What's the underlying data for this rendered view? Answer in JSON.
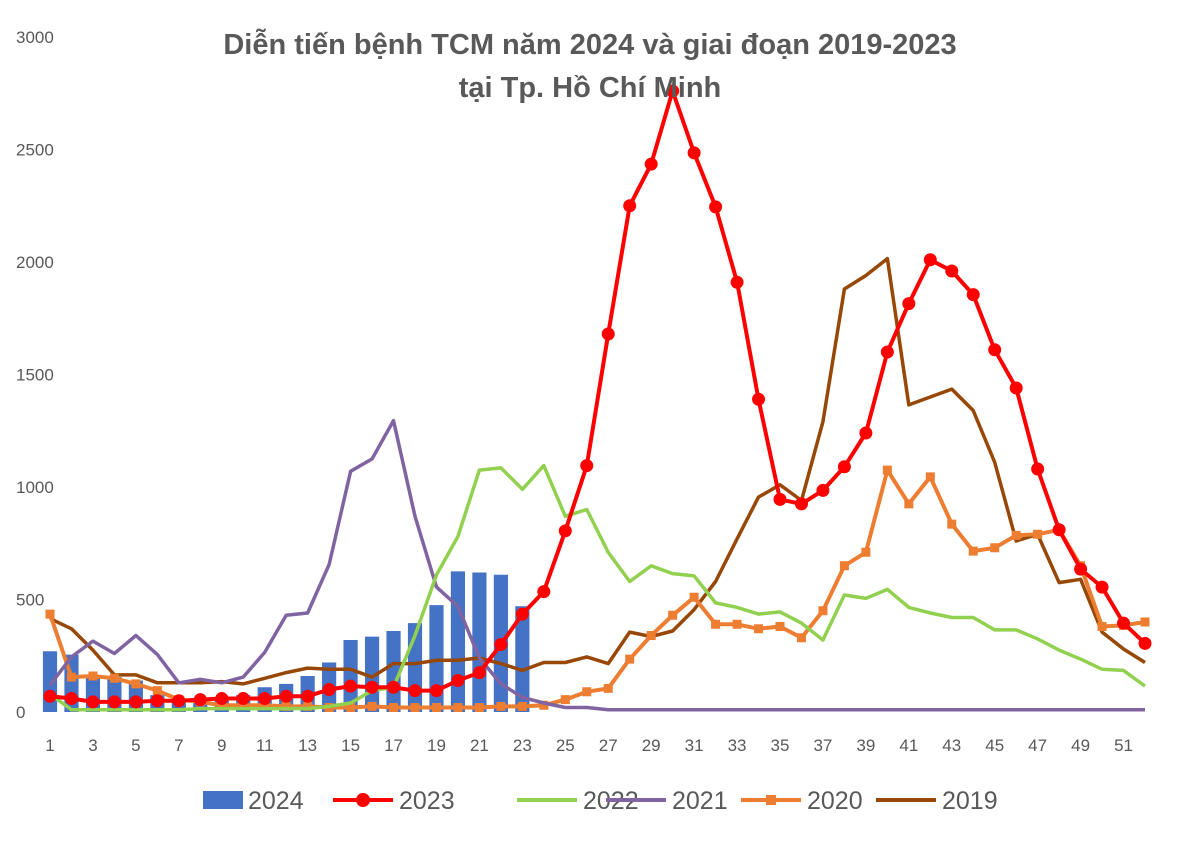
{
  "chart_data": {
    "type": "bar+line",
    "title": "Diễn tiến bệnh TCM năm 2024 và giai đoạn 2019-2023",
    "subtitle": "tại Tp. Hồ Chí Minh",
    "xlabel": "",
    "ylabel": "",
    "ylim": [
      0,
      3000
    ],
    "yticks": [
      "0",
      "500",
      "1000",
      "1500",
      "2000",
      "2500",
      "3000"
    ],
    "xticks": [
      "1",
      "3",
      "5",
      "7",
      "9",
      "11",
      "13",
      "15",
      "17",
      "19",
      "21",
      "23",
      "25",
      "27",
      "29",
      "31",
      "33",
      "35",
      "37",
      "39",
      "41",
      "43",
      "45",
      "47",
      "49",
      "51"
    ],
    "weeks": [
      1,
      2,
      3,
      4,
      5,
      6,
      7,
      8,
      9,
      10,
      11,
      12,
      13,
      14,
      15,
      16,
      17,
      18,
      19,
      20,
      21,
      22,
      23,
      24,
      25,
      26,
      27,
      28,
      29,
      30,
      31,
      32,
      33,
      34,
      35,
      36,
      37,
      38,
      39,
      40,
      41,
      42,
      43,
      44,
      45,
      46,
      47,
      48,
      49,
      50,
      51,
      52
    ],
    "legend_position": "bottom",
    "series": [
      {
        "name": "2024",
        "kind": "bar",
        "color": "#4472C4",
        "values": [
          270,
          255,
          165,
          155,
          140,
          75,
          55,
          45,
          55,
          75,
          110,
          125,
          160,
          220,
          320,
          335,
          360,
          395,
          475,
          625,
          620,
          610,
          470
        ]
      },
      {
        "name": "2023",
        "kind": "line",
        "marker": "circle",
        "color": "#FF0000",
        "values": [
          70,
          60,
          45,
          45,
          45,
          50,
          50,
          55,
          60,
          60,
          60,
          70,
          70,
          100,
          115,
          110,
          110,
          95,
          95,
          140,
          175,
          300,
          435,
          535,
          805,
          1095,
          1680,
          2250,
          2435,
          2760,
          2485,
          2245,
          1910,
          1390,
          945,
          925,
          985,
          1090,
          1240,
          1600,
          1815,
          2010,
          1960,
          1855,
          1610,
          1440,
          1080,
          810,
          635,
          555,
          395,
          305
        ]
      },
      {
        "name": "2022",
        "kind": "line",
        "color": "#92D050",
        "values": [
          80,
          10,
          10,
          10,
          10,
          10,
          10,
          15,
          15,
          15,
          15,
          15,
          15,
          25,
          40,
          95,
          110,
          340,
          610,
          780,
          1075,
          1085,
          990,
          1095,
          870,
          900,
          710,
          580,
          650,
          615,
          605,
          485,
          465,
          435,
          445,
          395,
          320,
          520,
          505,
          545,
          465,
          440,
          420,
          420,
          365,
          365,
          325,
          275,
          235,
          190,
          185,
          115
        ]
      },
      {
        "name": "2021",
        "kind": "line",
        "color": "#8064A2",
        "values": [
          120,
          245,
          315,
          260,
          340,
          255,
          130,
          145,
          130,
          155,
          265,
          430,
          440,
          655,
          1070,
          1125,
          1295,
          870,
          555,
          470,
          240,
          125,
          65,
          40,
          20,
          20,
          10,
          10,
          10,
          10,
          10,
          10,
          10,
          10,
          10,
          10,
          10,
          10,
          10,
          10,
          10,
          10,
          10,
          10,
          10,
          10,
          10,
          10,
          10,
          10,
          10,
          10
        ]
      },
      {
        "name": "2020",
        "kind": "line",
        "marker": "square",
        "color": "#ED7D31",
        "values": [
          435,
          155,
          160,
          150,
          125,
          95,
          55,
          45,
          30,
          30,
          30,
          25,
          25,
          20,
          20,
          25,
          20,
          20,
          20,
          20,
          20,
          25,
          25,
          30,
          55,
          90,
          105,
          235,
          340,
          430,
          510,
          390,
          390,
          370,
          380,
          330,
          450,
          650,
          710,
          1075,
          925,
          1045,
          835,
          715,
          730,
          785,
          790,
          810,
          650,
          380,
          385,
          400
        ]
      },
      {
        "name": "2019",
        "kind": "line",
        "color": "#974706",
        "values": [
          415,
          370,
          275,
          165,
          165,
          130,
          130,
          130,
          135,
          125,
          150,
          175,
          195,
          190,
          190,
          155,
          215,
          215,
          230,
          230,
          240,
          215,
          185,
          220,
          220,
          245,
          215,
          355,
          335,
          360,
          455,
          580,
          770,
          955,
          1010,
          940,
          1290,
          1880,
          1940,
          2015,
          1365,
          1400,
          1435,
          1340,
          1110,
          760,
          790,
          575,
          590,
          355,
          280,
          220
        ]
      }
    ]
  }
}
